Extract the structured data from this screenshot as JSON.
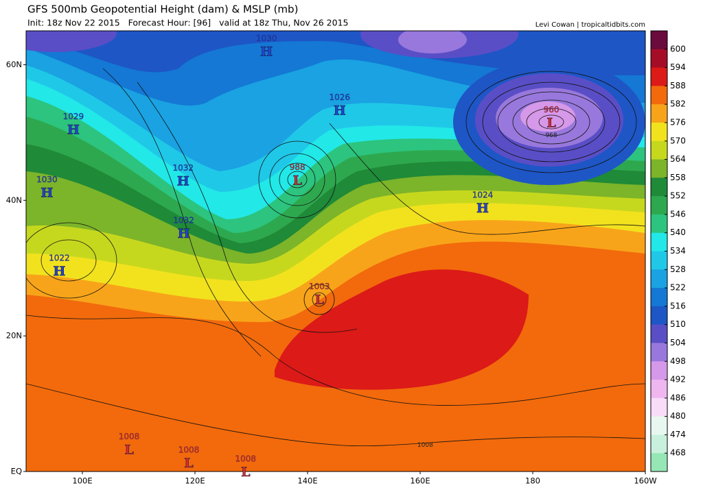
{
  "map": {
    "title": "GFS 500mb Geopotential Height (dam) & MSLP (mb)",
    "subtitle": "Init: 18z Nov 22 2015   Forecast Hour: [96]   valid at 18z Thu, Nov 26 2015",
    "credit": "Levi Cowan | tropicaltidbits.com",
    "lonlim": [
      90,
      200
    ],
    "latlim": [
      0,
      65
    ],
    "lon_ticks": [
      {
        "value": 100,
        "label": "100E"
      },
      {
        "value": 120,
        "label": "120E"
      },
      {
        "value": 140,
        "label": "140E"
      },
      {
        "value": 160,
        "label": "160E"
      },
      {
        "value": 180,
        "label": "180"
      },
      {
        "value": 200,
        "label": "160W"
      }
    ],
    "lat_ticks": [
      {
        "value": 0,
        "label": "EQ"
      },
      {
        "value": 20,
        "label": "20N"
      },
      {
        "value": 40,
        "label": "40N"
      },
      {
        "value": 60,
        "label": "60N"
      }
    ],
    "colorbar": {
      "levels": [
        600,
        594,
        588,
        582,
        576,
        570,
        564,
        558,
        552,
        546,
        540,
        534,
        528,
        522,
        516,
        510,
        504,
        498,
        492,
        486,
        480,
        474,
        468
      ],
      "colors": [
        "#6b0a3c",
        "#a50d26",
        "#dc1a18",
        "#f26a0c",
        "#f8a41a",
        "#f2e21e",
        "#c6d81e",
        "#7cb42a",
        "#1f8a38",
        "#2ea84e",
        "#2cc47e",
        "#22e8e8",
        "#20c8e8",
        "#1aa2e2",
        "#1478d4",
        "#1e56c6",
        "#5a4ec6",
        "#9878dc",
        "#d698e8",
        "#f0b6f0",
        "#f8dcf8",
        "#e8f8f0",
        "#c8f0dc",
        "#96e6b6"
      ]
    },
    "centers": [
      {
        "type": "H",
        "value": 1030,
        "lon": 132.7,
        "lat": 62.0
      },
      {
        "type": "H",
        "value": 1026,
        "lon": 145.7,
        "lat": 53.3
      },
      {
        "type": "H",
        "value": 1029,
        "lon": 98.4,
        "lat": 50.5
      },
      {
        "type": "H",
        "value": 1032,
        "lon": 117.9,
        "lat": 42.9
      },
      {
        "type": "H",
        "value": 1030,
        "lon": 93.7,
        "lat": 41.2
      },
      {
        "type": "H",
        "value": 1032,
        "lon": 118.0,
        "lat": 35.2
      },
      {
        "type": "H",
        "value": 1022,
        "lon": 95.9,
        "lat": 29.6
      },
      {
        "type": "L",
        "value": 988,
        "lon": 138.2,
        "lat": 43.0
      },
      {
        "type": "L",
        "value": 960,
        "lon": 183.3,
        "lat": 51.5
      },
      {
        "type": "H",
        "value": 1024,
        "lon": 171.1,
        "lat": 38.9
      },
      {
        "type": "L",
        "value": 1003,
        "lon": 142.1,
        "lat": 25.4
      },
      {
        "type": "L",
        "value": 1008,
        "lon": 108.3,
        "lat": 3.3
      },
      {
        "type": "L",
        "value": 1008,
        "lon": 118.9,
        "lat": 1.3
      },
      {
        "type": "L",
        "value": 1008,
        "lon": 129.0,
        "lat": 0.0
      }
    ],
    "contour_labels": [
      {
        "value": 968,
        "lon": 183.3,
        "lat": 49.6
      },
      {
        "value": 1008,
        "lon": 160.9,
        "lat": 3.9
      }
    ]
  }
}
